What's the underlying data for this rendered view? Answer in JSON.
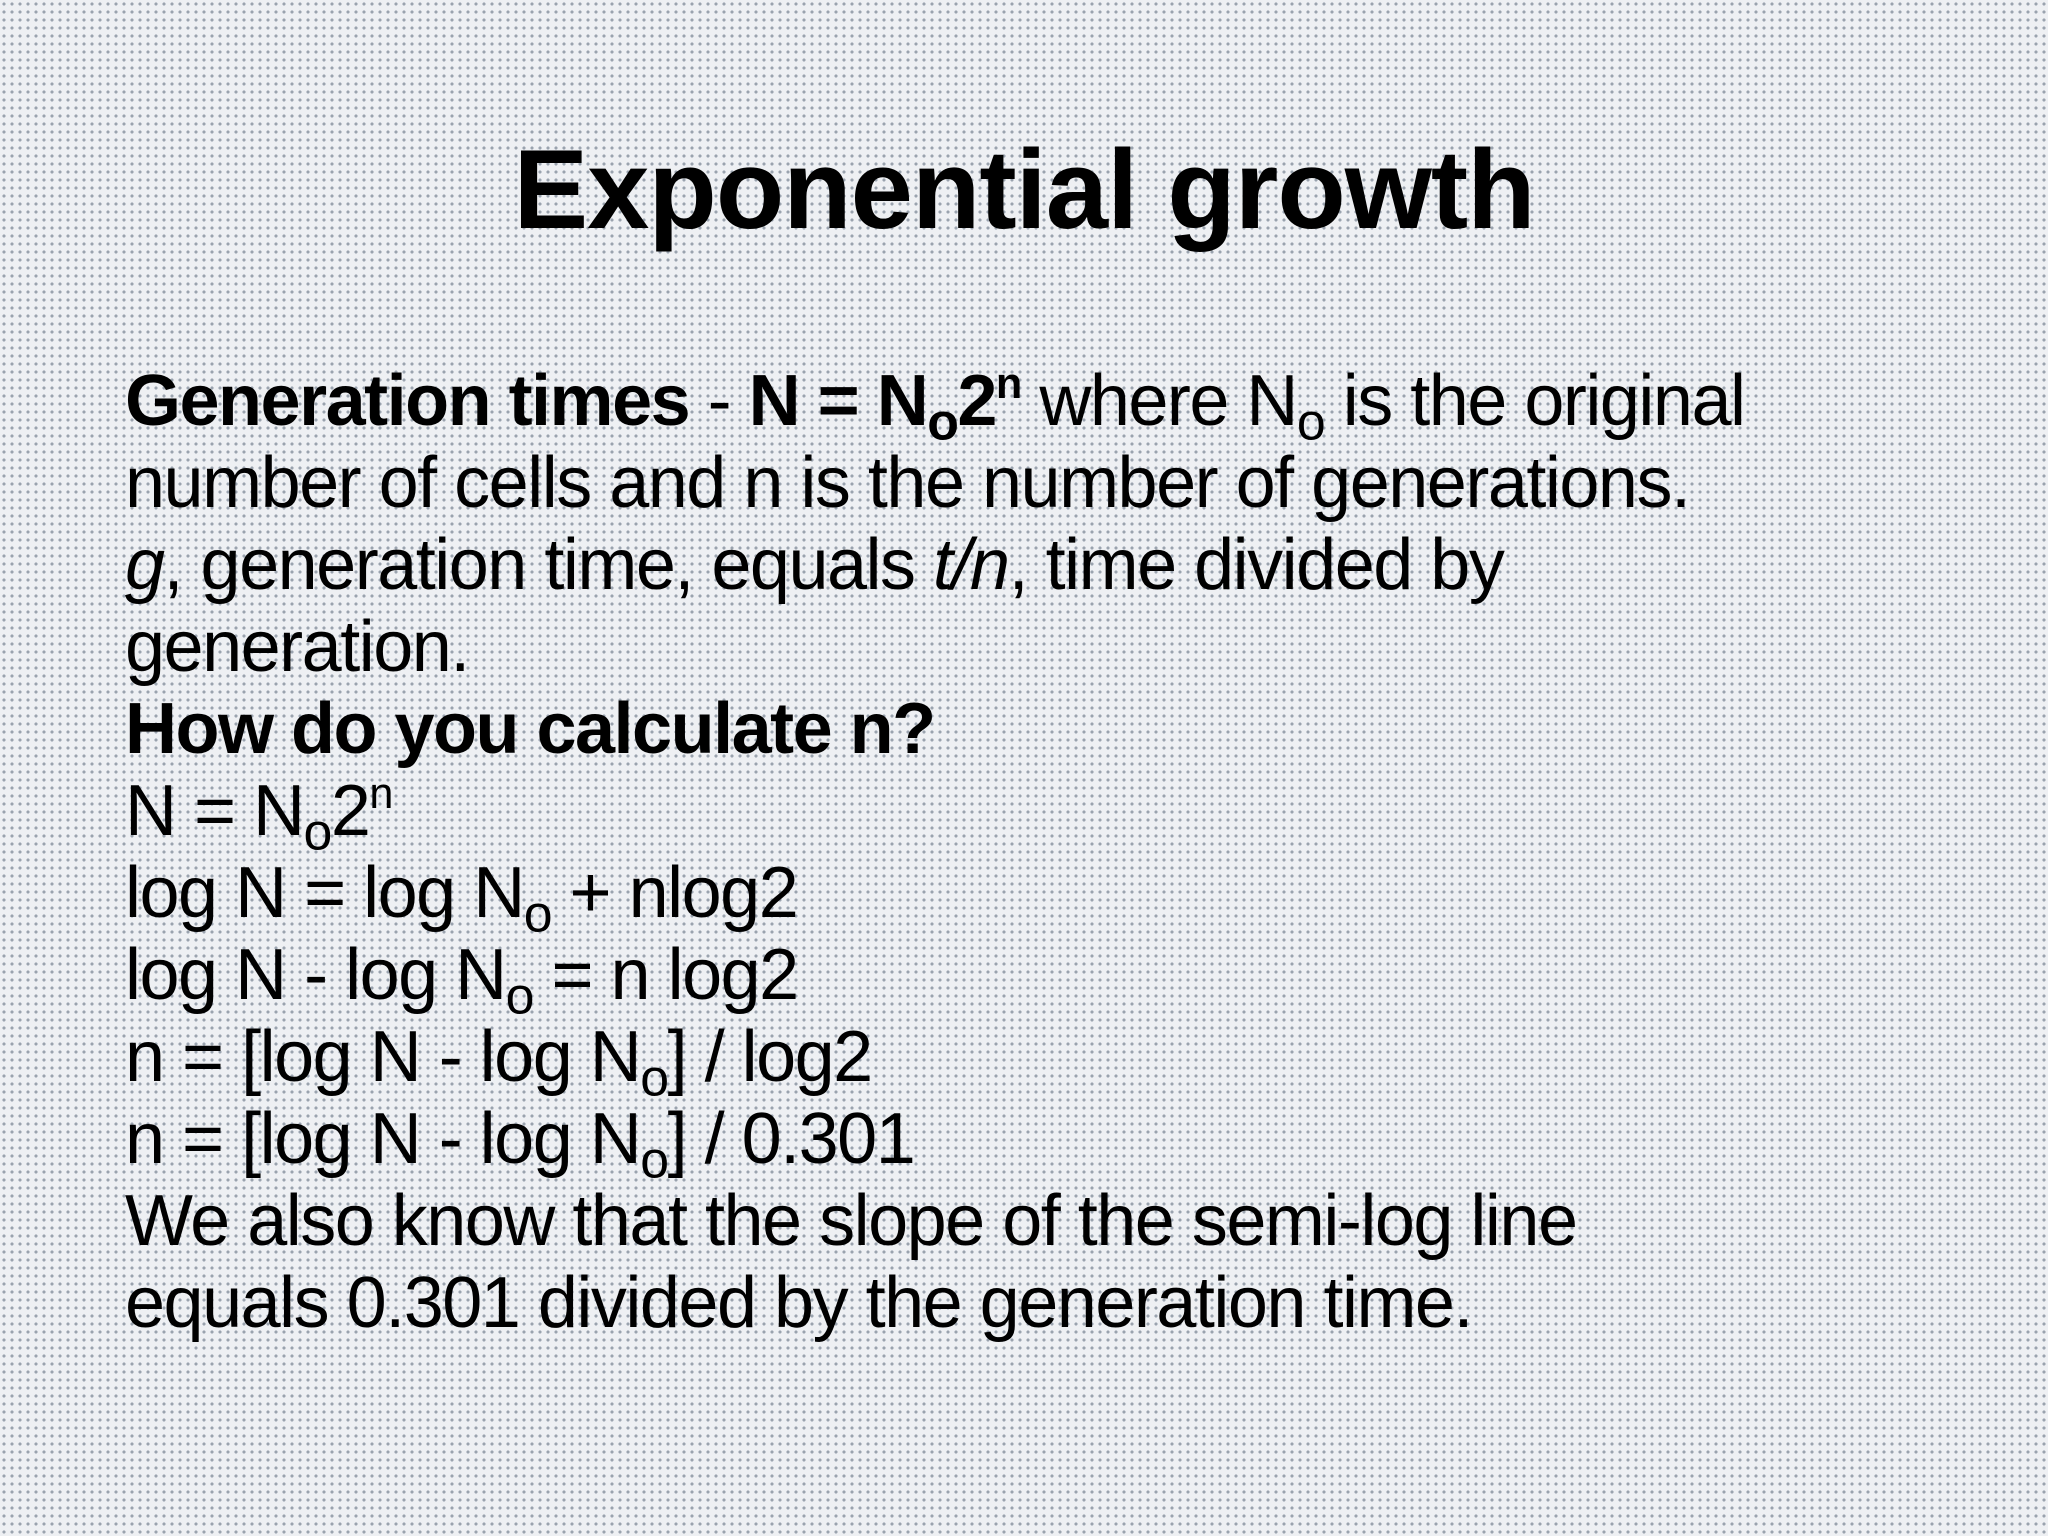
{
  "title": "Exponential growth",
  "lines": {
    "l1": {
      "label": "Generation times",
      "sep": " - ",
      "N": "N = N",
      "sub": "o",
      "two": "2",
      "sup": "n",
      "where": " where N",
      "where_sub": "o",
      "rest": " is the original"
    },
    "l2": "number of cells and n is the number of generations.",
    "l3": {
      "g": "g",
      "mid": ", generation time, equals ",
      "tn": "t/n",
      "rest": ", time divided by"
    },
    "l4": "generation.",
    "l5": "How do you calculate n?",
    "l6": {
      "pre": "N = N",
      "sub": "o",
      "two": "2",
      "sup": "n"
    },
    "l7": {
      "pre": "log N = log N",
      "sub": "o",
      "post": " + nlog2"
    },
    "l8": {
      "pre": "log N - log N",
      "sub": "o",
      "post": " = n log2"
    },
    "l9": {
      "pre": "n = [log N - log N",
      "sub": "o",
      "post": "] / log2"
    },
    "l10": {
      "pre": "n = [log N - log N",
      "sub": "o",
      "post": "] / 0.301"
    },
    "l11": "We also know that the slope of the semi-log line",
    "l12": "equals 0.301 divided by the generation time."
  }
}
